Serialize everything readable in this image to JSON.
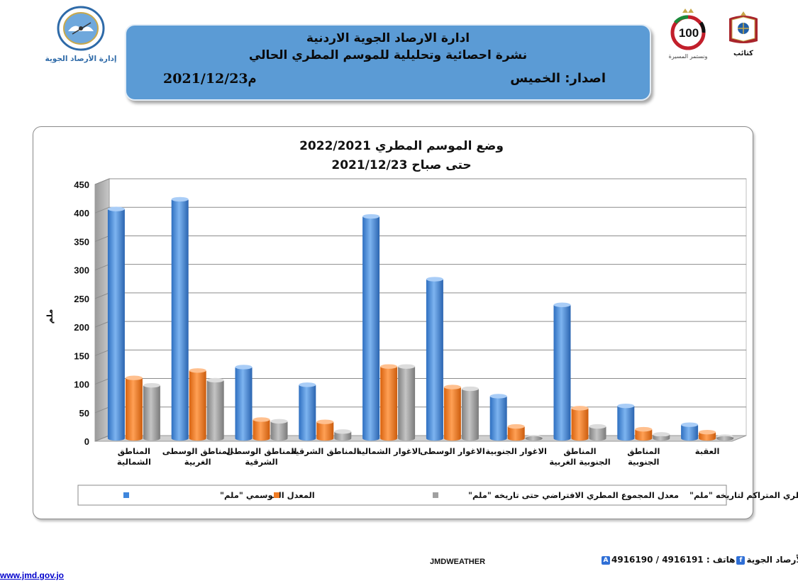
{
  "header": {
    "jmd_logo_text": "إدارة الأرصاد الجوية",
    "line1": "ادارة الارصاد الجوية الاردنية",
    "line2": "نشرة احصائية وتحليلية للموسم المطري الحالي",
    "issue_label": "اصدار: الخميس",
    "issue_date": "2021/12/23م",
    "centenary_text": "100",
    "centenary_caption": "ونستمر المسيرة",
    "crest_caption": "كتائب"
  },
  "colors": {
    "banner": "#5b9bd5",
    "series_blue": "#4a8fdd",
    "series_orange": "#f07c24",
    "series_gray": "#9e9e9e"
  },
  "chart_data": {
    "type": "bar",
    "title": "وضع الموسم المطري 2022/2021",
    "subtitle": "حتى صباح 2021/12/23",
    "ylabel": "ملم",
    "ylim": [
      0,
      450
    ],
    "yticks": [
      0,
      50,
      100,
      150,
      200,
      250,
      300,
      350,
      400,
      450
    ],
    "grid": true,
    "legend_position": "bottom",
    "categories": [
      [
        "المناطق",
        "الشمالية"
      ],
      [
        "المناطق الوسطى",
        "الغربية"
      ],
      [
        "المناطق الوسطى",
        "الشرقية"
      ],
      [
        "المناطق الشرقية"
      ],
      [
        "الاغوار الشمالية"
      ],
      [
        "الاغوار الوسطى"
      ],
      [
        "الاغوار الجنوبية"
      ],
      [
        "المناطق",
        "الجنوبية الغربية"
      ],
      [
        "المناطق",
        "الجنوبية"
      ],
      [
        "العقبة"
      ]
    ],
    "series": [
      {
        "name": "المعدل الموسمي  \"ملم\"",
        "values": [
          402,
          419,
          125,
          94,
          389,
          279,
          74,
          234,
          57,
          24
        ]
      },
      {
        "name": "معدل المجموع المطري الافتراضي حتى تاريخه \"ملم\"",
        "values": [
          106,
          119,
          33,
          29,
          126,
          90,
          21,
          53,
          16,
          11
        ]
      },
      {
        "name": "معدل المجموع المطري المتراكم لتاريخه \"ملم\"",
        "values": [
          93,
          102,
          30,
          12,
          126,
          87,
          2,
          21,
          7,
          3
        ]
      }
    ]
  },
  "footer": {
    "url": "www.jmd.gov.jo",
    "brand": "JMDWEATHER",
    "phone": "هاتف : 4916191  /  4916190",
    "social": "ادارة الأرصاد الجوية"
  }
}
